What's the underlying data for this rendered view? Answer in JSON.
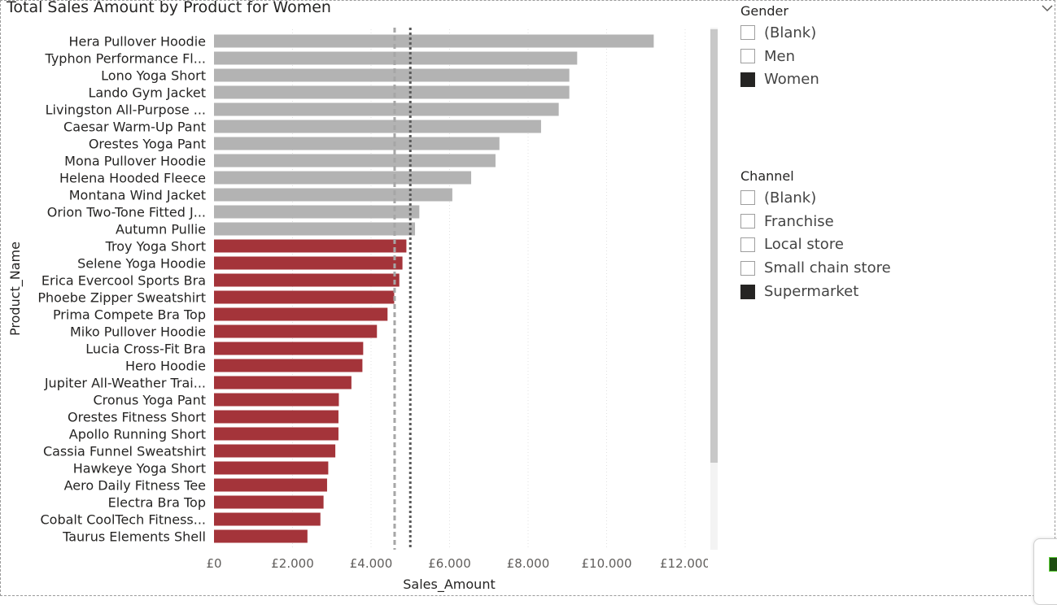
{
  "chart_data": {
    "type": "bar",
    "orientation": "horizontal",
    "title": "Total Sales Amount by Product for Women",
    "xlabel": "Sales_Amount",
    "ylabel": "Product_Name",
    "xlim": [
      0,
      12000
    ],
    "x_ticks": [
      0,
      2000,
      4000,
      6000,
      8000,
      10000,
      12000
    ],
    "x_tick_labels": [
      "£0",
      "£2.000",
      "£4.000",
      "£6.000",
      "£8.000",
      "£10.000",
      "£12.000"
    ],
    "categories": [
      "Hera Pullover Hoodie",
      "Typhon Performance Fl...",
      "Lono Yoga Short",
      "Lando Gym Jacket",
      "Livingston All-Purpose ...",
      "Caesar Warm-Up Pant",
      "Orestes Yoga Pant",
      "Mona Pullover Hoodie",
      "Helena Hooded Fleece",
      "Montana Wind Jacket",
      "Orion Two-Tone Fitted J...",
      "Autumn Pullie",
      "Troy Yoga Short",
      "Selene Yoga Hoodie",
      "Erica Evercool Sports Bra",
      "Phoebe Zipper Sweatshirt",
      "Prima Compete Bra Top",
      "Miko Pullover Hoodie",
      "Lucia Cross-Fit Bra",
      "Hero Hoodie",
      "Jupiter All-Weather Trai...",
      "Cronus Yoga Pant",
      "Orestes Fitness Short",
      "Apollo Running Short",
      "Cassia Funnel Sweatshirt",
      "Hawkeye Yoga Short",
      "Aero Daily Fitness Tee",
      "Electra Bra Top",
      "Cobalt CoolTech Fitness...",
      "Taurus Elements Shell"
    ],
    "values": [
      11200,
      9250,
      9050,
      9050,
      8780,
      8330,
      7270,
      7170,
      6550,
      6070,
      5230,
      5120,
      4900,
      4800,
      4720,
      4590,
      4420,
      4150,
      3800,
      3780,
      3500,
      3180,
      3170,
      3170,
      3090,
      2910,
      2880,
      2790,
      2710,
      2380
    ],
    "bar_colors": [
      "#b3b3b3",
      "#b3b3b3",
      "#b3b3b3",
      "#b3b3b3",
      "#b3b3b3",
      "#b3b3b3",
      "#b3b3b3",
      "#b3b3b3",
      "#b3b3b3",
      "#b3b3b3",
      "#b3b3b3",
      "#b3b3b3",
      "#a4343a",
      "#a4343a",
      "#a4343a",
      "#a4343a",
      "#a4343a",
      "#a4343a",
      "#a4343a",
      "#a4343a",
      "#a4343a",
      "#a4343a",
      "#a4343a",
      "#a4343a",
      "#a4343a",
      "#a4343a",
      "#a4343a",
      "#a4343a",
      "#a4343a",
      "#a4343a"
    ],
    "reference_lines": [
      {
        "value": 4600,
        "color": "#a6a6a6",
        "style": "dashed"
      },
      {
        "value": 5000,
        "color": "#595959",
        "style": "dotted"
      }
    ],
    "grid": "vertical-dotted",
    "legend": "none"
  },
  "slicers": {
    "gender": {
      "title": "Gender",
      "items": [
        {
          "label": "(Blank)",
          "checked": false
        },
        {
          "label": "Men",
          "checked": false
        },
        {
          "label": "Women",
          "checked": true
        }
      ]
    },
    "channel": {
      "title": "Channel",
      "items": [
        {
          "label": "(Blank)",
          "checked": false
        },
        {
          "label": "Franchise",
          "checked": false
        },
        {
          "label": "Local store",
          "checked": false
        },
        {
          "label": "Small chain store",
          "checked": false
        },
        {
          "label": "Supermarket",
          "checked": true
        }
      ]
    }
  },
  "colors": {
    "highlight": "#a4343a",
    "muted": "#b3b3b3",
    "axis_text": "#605e5c"
  },
  "icons": {
    "dropdown": "chevron-down-icon"
  }
}
